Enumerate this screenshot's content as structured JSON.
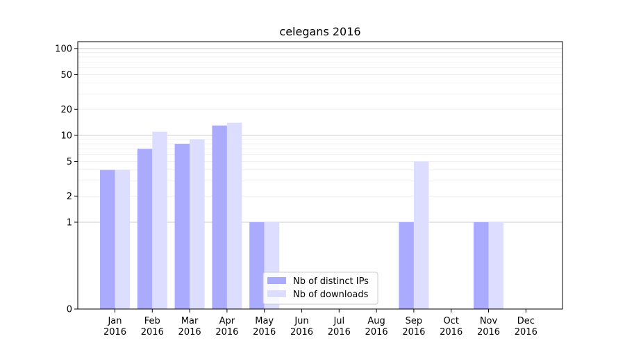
{
  "chart_data": {
    "type": "bar",
    "title": "celegans 2016",
    "xlabel": "",
    "ylabel": "",
    "yscale": "symlog",
    "ylim": [
      0,
      120
    ],
    "yticks": [
      0,
      1,
      2,
      5,
      10,
      20,
      50,
      100
    ],
    "ytick_labels": [
      "0",
      "1",
      "2",
      "5",
      "10",
      "20",
      "50",
      "100"
    ],
    "categories": [
      [
        "Jan",
        "2016"
      ],
      [
        "Feb",
        "2016"
      ],
      [
        "Mar",
        "2016"
      ],
      [
        "Apr",
        "2016"
      ],
      [
        "May",
        "2016"
      ],
      [
        "Jun",
        "2016"
      ],
      [
        "Jul",
        "2016"
      ],
      [
        "Aug",
        "2016"
      ],
      [
        "Sep",
        "2016"
      ],
      [
        "Oct",
        "2016"
      ],
      [
        "Nov",
        "2016"
      ],
      [
        "Dec",
        "2016"
      ]
    ],
    "series": [
      {
        "name": "Nb of distinct IPs",
        "color": "#aaaaff",
        "values": [
          4,
          7,
          8,
          13,
          1,
          0,
          0,
          0,
          1,
          0,
          1,
          0
        ]
      },
      {
        "name": "Nb of downloads",
        "color": "#ddddff",
        "values": [
          4,
          11,
          9,
          14,
          1,
          0,
          0,
          0,
          5,
          0,
          1,
          0
        ]
      }
    ],
    "grid": true,
    "legend_position": "lower-center"
  }
}
